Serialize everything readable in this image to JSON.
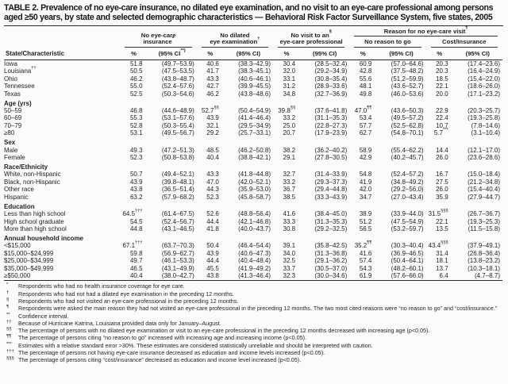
{
  "title": "TABLE 2. Prevalence of no eye-care insurance, no dilated eye examination, and no visit to an eye-care professional among persons aged ≥50 years, by state and selected demographic characteristics — Behavioral Risk Factor Surveillance System, five states, 2005",
  "table": {
    "groups": [
      {
        "lines": [
          "No eye-care",
          "insurance^*"
        ]
      },
      {
        "lines": [
          "No dilated",
          "eye examination^†"
        ]
      },
      {
        "lines": [
          "No visit to an^§",
          "eye-care professional"
        ]
      }
    ],
    "reason_group": {
      "lines": [
        "Reason for no eye-care visit^¶"
      ]
    },
    "subgroups": [
      {
        "lines": [
          "No reason to go"
        ]
      },
      {
        "lines": [
          "Cost/Insurance"
        ]
      }
    ],
    "col_headers": {
      "label": "State/Characteristic",
      "pct": "%",
      "ci_first": "(95% CI^**)",
      "ci": "(95% CI)"
    },
    "rows": [
      {
        "label": "Iowa",
        "indent": 0,
        "cells": [
          "51.8",
          "(49.7–53.9)",
          "40.6",
          "(38.3–42.9)",
          "30.4",
          "(28.5–32.4)",
          "60.9",
          "(57.0–64.6)",
          "20.3",
          "(17.4–23.6)"
        ]
      },
      {
        "label": "Louisiana^††",
        "indent": 0,
        "cells": [
          "50.5",
          "(47.5–53.5)",
          "41.7",
          "(38.3–45.1)",
          "32.0",
          "(29.2–34.9)",
          "42.8",
          "(37.5–48.2)",
          "20.3",
          "(16.4–24.9)"
        ]
      },
      {
        "label": "Ohio",
        "indent": 0,
        "cells": [
          "46.2",
          "(43.8–48.7)",
          "43.3",
          "(40.6–46.1)",
          "33.1",
          "(30.8–35.4)",
          "55.6",
          "(51.2–59.9)",
          "18.5",
          "(15.4–22.0)"
        ]
      },
      {
        "label": "Tennessee",
        "indent": 0,
        "cells": [
          "55.0",
          "(52.4–57.6)",
          "42.7",
          "(39.9–45.5)",
          "31.2",
          "(28.9–33.6)",
          "48.1",
          "(43.6–52.7)",
          "22.1",
          "(18.6–26.0)"
        ]
      },
      {
        "label": "Texas",
        "indent": 0,
        "cells": [
          "52.5",
          "(50.3–54.6)",
          "46.2",
          "(43.8–48.6)",
          "34.8",
          "(32.7–36.9)",
          "49.8",
          "(46.0–53.6)",
          "20.0",
          "(17.1–23.2)"
        ]
      },
      {
        "label": "Age (yrs)",
        "section": true
      },
      {
        "label": "50–59",
        "indent": 1,
        "cells": [
          "46.8",
          "(44.6–48.9)",
          "52.7^§§",
          "(50.4–54.9)",
          "39.8^§§",
          "(37.6–41.8)",
          "47.0^¶¶",
          "(43.6–50.3)",
          "22.9",
          "(20.3–25.7)"
        ]
      },
      {
        "label": "60–69",
        "indent": 1,
        "cells": [
          "55.3",
          "(53.1–57.6)",
          "43.9",
          "(41.4–46.4)",
          "33.2",
          "(31.1–35.3)",
          "53.4",
          "(49.5–57.2)",
          "22.4",
          "(19.3–25.8)"
        ]
      },
      {
        "label": "70–79",
        "indent": 1,
        "cells": [
          "52.8",
          "(50.3–55.4)",
          "32.1",
          "(29.5–34.9)",
          "25.0",
          "(22.8–27.3)",
          "57.7",
          "(52.5–62.8)",
          "10.7",
          "(7.8–14.6)"
        ]
      },
      {
        "label": "≥80",
        "indent": 2,
        "cells": [
          "53.1",
          "(49.5–56.7)",
          "29.2",
          "(25.7–33.1)",
          "20.7",
          "(17.9–23.9)",
          "62.7",
          "(54.8–70.1)",
          "5.7^***",
          "(3.1–10.4)"
        ]
      },
      {
        "label": "Sex",
        "section": true
      },
      {
        "label": "Male",
        "indent": 1,
        "cells": [
          "49.3",
          "(47.2–51.3)",
          "48.5",
          "(46.2–50.8)",
          "38.2",
          "(36.2–40.2)",
          "58.9",
          "(55.4–62.2)",
          "14.4",
          "(12.1–17.0)"
        ]
      },
      {
        "label": "Female",
        "indent": 1,
        "cells": [
          "52.3",
          "(50.8–53.8)",
          "40.4",
          "(38.8–42.1)",
          "29.1",
          "(27.8–30.5)",
          "42.9",
          "(40.2–45.7)",
          "26.0",
          "(23.6–28.6)"
        ]
      },
      {
        "label": "Race/Ethnicity",
        "section": true
      },
      {
        "label": "White, non-Hispanic",
        "indent": 1,
        "cells": [
          "50.7",
          "(49.4–52.1)",
          "43.3",
          "(41.8–44.8)",
          "32.7",
          "(31.4–33.9)",
          "54.8",
          "(52.4–57.2)",
          "16.7",
          "(15.0–18.4)"
        ]
      },
      {
        "label": "Black, non-Hispanic",
        "indent": 1,
        "cells": [
          "43.9",
          "(39.8–48.1)",
          "47.0",
          "(42.0–52.1)",
          "33.2",
          "(29.3–37.3)",
          "41.9",
          "(34.8–49.2)",
          "27.5",
          "(21.2–34.8)"
        ]
      },
      {
        "label": "Other race",
        "indent": 1,
        "cells": [
          "43.8",
          "(36.5–51.4)",
          "44.3",
          "(35.9–53.0)",
          "36.7",
          "(29.4–44.8)",
          "42.0",
          "(29.2–56.0)",
          "26.0",
          "(15.4–40.4)"
        ]
      },
      {
        "label": "Hispanic",
        "indent": 1,
        "cells": [
          "63.2",
          "(57.9–68.2)",
          "52.3",
          "(45.8–58.7)",
          "38.5",
          "(33.3–43.9)",
          "34.7",
          "(27.0–43.4)",
          "35.9",
          "(27.9–44.7)"
        ]
      },
      {
        "label": "Education",
        "section": true
      },
      {
        "label": "Less than high school",
        "indent": 1,
        "cells": [
          "64.5^†††",
          "(61.4–67.5)",
          "52.6",
          "(48.8–56.4)",
          "41.6",
          "(38.4–45.0)",
          "38.9",
          "(33.9–44.0)",
          "31.5^§§§",
          "(26.7–36.7)"
        ]
      },
      {
        "label": "High school graduate",
        "indent": 1,
        "cells": [
          "54.5",
          "(52.4–56.7)",
          "44.4",
          "(42.1–46.8)",
          "33.3",
          "(31.3–35.3)",
          "51.2",
          "(47.5–54.9)",
          "22.1",
          "(19.3–25.3)"
        ]
      },
      {
        "label": "More than high school",
        "indent": 1,
        "cells": [
          "44.8",
          "(43.1–46.5)",
          "41.8",
          "(40.0–43.7)",
          "30.8",
          "(29.2–32.5)",
          "56.5",
          "(53.2–59.7)",
          "13.5",
          "(11.5–15.8)"
        ]
      },
      {
        "label": "Annual household income",
        "section": true
      },
      {
        "label": "<$15,000",
        "indent": 2,
        "cells": [
          "67.1^†††",
          "(63.7–70.3)",
          "50.4",
          "(46.4–54.4)",
          "39.1",
          "(35.8–42.5)",
          "35.2^¶¶",
          "(30.3–40.4)",
          "43.4^§§§",
          "(37.9–49.1)"
        ]
      },
      {
        "label": "$15,000–$24,999",
        "indent": 1,
        "cells": [
          "59.8",
          "(56.9–62.7)",
          "43.9",
          "(40.6–47.3)",
          "34.0",
          "(31.3–36.8)",
          "41.6",
          "(36.9–46.5)",
          "31.4",
          "(26.8–36.4)"
        ]
      },
      {
        "label": "$25,000–$34,999",
        "indent": 1,
        "cells": [
          "49.7",
          "(46.1–53.3)",
          "44.4",
          "(40.4–48.4)",
          "32.5",
          "(29.1–36.2)",
          "57.4",
          "(50.4–64.1)",
          "18.1",
          "(13.8–23.2)"
        ]
      },
      {
        "label": "$35,000–$49,999",
        "indent": 1,
        "cells": [
          "46.5",
          "(43.1–49.9)",
          "45.5",
          "(41.9–49.2)",
          "33.7",
          "(30.5–37.0)",
          "54.3",
          "(48.2–60.1)",
          "13.7",
          "(10.3–18.1)"
        ]
      },
      {
        "label": "≥$50,000",
        "indent": 2,
        "cells": [
          "40.4",
          "(38.0–42.7)",
          "43.8",
          "(41.3–46.4)",
          "32.3",
          "(30.0–34.6)",
          "61.9",
          "(57.6–66.0)",
          "6.4",
          "(4.7–8.7)"
        ]
      }
    ]
  },
  "footnotes": [
    {
      "m": "*",
      "t": "Respondents who had no health insurance coverage for eye care."
    },
    {
      "m": "†",
      "t": "Respondents who had not had a dilated eye examination in the preceding 12 months."
    },
    {
      "m": "§",
      "t": "Respondents who had not visited an eye-care professional in the preceding 12 months."
    },
    {
      "m": "¶",
      "t": "Respondents were asked the main reason they had not visited an eye-care professional in the preceding 12 months. The two most cited reasons were “no reason to go” and “cost/insurance.”"
    },
    {
      "m": "**",
      "t": "Confidence interval."
    },
    {
      "m": "††",
      "t": "Because of Hurricane Katrina, Louisiana provided data only for January–August."
    },
    {
      "m": "§§",
      "t": "The percentage of persons with no dilated eye examination or visit to an eye-care professional in the preceding 12 months decreased with increasing age (p<0.05)."
    },
    {
      "m": "¶¶",
      "t": "The percentage of persons citing “no reason to go” increased with increasing age and increasing income (p<0.05)."
    },
    {
      "m": "***",
      "t": "Estimates with a relative standard error >30%. These estimates are considered statistically unreliable and should be interpreted with caution."
    },
    {
      "m": "†††",
      "t": "The percentage of persons not having eye-care insurance decreased as education and income levels increased (p<0.05)."
    },
    {
      "m": "§§§",
      "t": "The percentage of persons citing “cost/insurance” decreased as education and income level increased (p<0.05)."
    }
  ]
}
